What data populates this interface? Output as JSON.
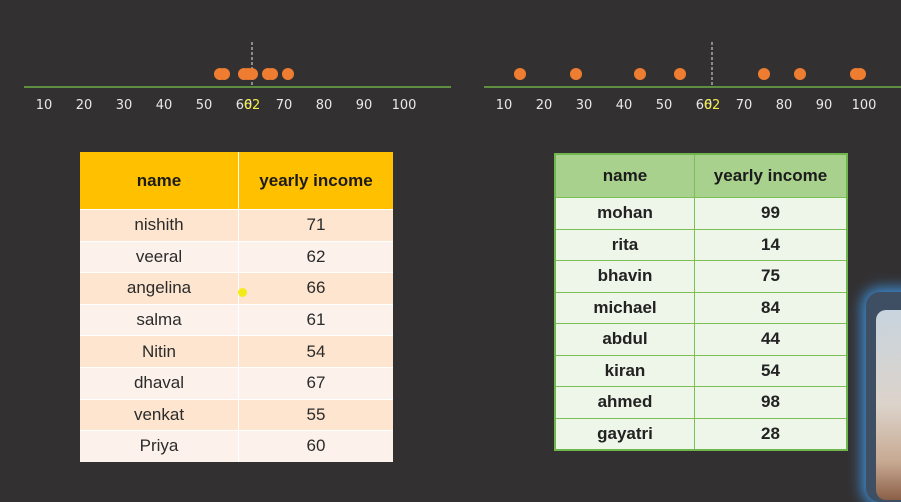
{
  "plots": {
    "left": {
      "ticks": [
        "10",
        "20",
        "30",
        "40",
        "50",
        "60",
        "70",
        "80",
        "90",
        "100"
      ],
      "mean_label": "62",
      "mean_value": 62,
      "points": [
        71,
        62,
        66,
        61,
        54,
        67,
        55,
        60
      ],
      "axis_color": "#70ad47",
      "point_color": "#ef7d31"
    },
    "right": {
      "ticks": [
        "10",
        "20",
        "30",
        "40",
        "50",
        "60",
        "70",
        "80",
        "90",
        "100"
      ],
      "mean_label": "62",
      "mean_value": 62,
      "points": [
        99,
        14,
        75,
        84,
        44,
        54,
        98,
        28
      ],
      "axis_color": "#70ad47",
      "point_color": "#ef7d31"
    }
  },
  "table_left": {
    "headers": {
      "name": "name",
      "income": "yearly income"
    },
    "rows": [
      {
        "name": "nishith",
        "income": "71"
      },
      {
        "name": "veeral",
        "income": "62"
      },
      {
        "name": "angelina",
        "income": "66"
      },
      {
        "name": "salma",
        "income": "61"
      },
      {
        "name": "Nitin",
        "income": "54"
      },
      {
        "name": "dhaval",
        "income": "67"
      },
      {
        "name": "venkat",
        "income": "55"
      },
      {
        "name": "Priya",
        "income": "60"
      }
    ],
    "header_color": "#ffc000"
  },
  "table_right": {
    "headers": {
      "name": "name",
      "income": "yearly income"
    },
    "rows": [
      {
        "name": "mohan",
        "income": "99"
      },
      {
        "name": "rita",
        "income": "14"
      },
      {
        "name": "bhavin",
        "income": "75"
      },
      {
        "name": "michael",
        "income": "84"
      },
      {
        "name": "abdul",
        "income": "44"
      },
      {
        "name": "kiran",
        "income": "54"
      },
      {
        "name": "ahmed",
        "income": "98"
      },
      {
        "name": "gayatri",
        "income": "28"
      }
    ],
    "header_color": "#a9d18e"
  }
}
